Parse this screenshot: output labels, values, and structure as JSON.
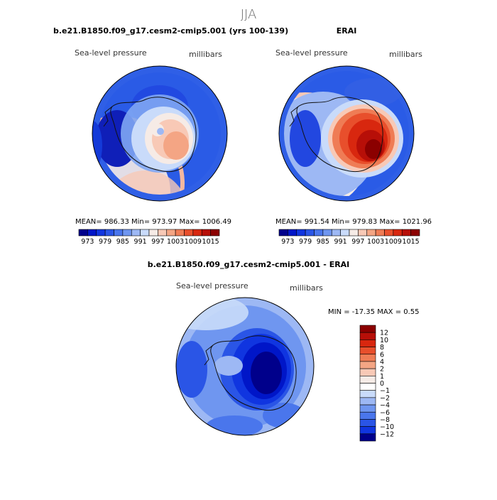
{
  "chart_data": {
    "type": "polar-contour-map",
    "figure_title": "JJA",
    "panels": [
      {
        "id": "model",
        "title": "b.e21.B1850.f09_g17.cesm2-cmip5.001 (yrs 100-139)",
        "left_label": "Sea-level pressure",
        "right_label": "millibars",
        "stats_text": "MEAN= 986.33   Min= 973.97   Max= 1006.49",
        "stats": {
          "mean": 986.33,
          "min": 973.97,
          "max": 1006.49
        },
        "colorbar_labels": [
          "973",
          "979",
          "985",
          "991",
          "997",
          "1003",
          "1009",
          "1015"
        ]
      },
      {
        "id": "obs",
        "title": "ERAI",
        "left_label": "Sea-level pressure",
        "right_label": "millibars",
        "stats_text": "MEAN= 991.54   Min= 979.83   Max= 1021.96",
        "stats": {
          "mean": 991.54,
          "min": 979.83,
          "max": 1021.96
        },
        "colorbar_labels": [
          "973",
          "979",
          "985",
          "991",
          "997",
          "1003",
          "1009",
          "1015"
        ]
      },
      {
        "id": "diff",
        "title": "b.e21.B1850.f09_g17.cesm2-cmip5.001 - ERAI",
        "left_label": "Sea-level pressure",
        "right_label": "millibars",
        "stats_text": "MIN = -17.35  MAX =    0.55",
        "stats": {
          "min": -17.35,
          "max": 0.55
        },
        "colorbar_labels": [
          "12",
          "10",
          "8",
          "6",
          "4",
          "2",
          "1",
          "0",
          "−1",
          "−2",
          "−4",
          "−6",
          "−8",
          "−10",
          "−12"
        ]
      }
    ],
    "colorbar_levels_abs": [
      973,
      976,
      979,
      982,
      985,
      988,
      991,
      994,
      997,
      1000,
      1003,
      1006,
      1009,
      1012,
      1015
    ],
    "colorbar_levels_diff": [
      12,
      10,
      8,
      6,
      4,
      2,
      1,
      0,
      -1,
      -2,
      -4,
      -6,
      -8,
      -10,
      -12
    ]
  },
  "colors": {
    "palette": [
      "#00008b",
      "#0016c8",
      "#1035e0",
      "#2a55e6",
      "#4a76ec",
      "#6f96f0",
      "#9db8f4",
      "#c9dbfa",
      "#f6ebe6",
      "#f8c9b6",
      "#f4a584",
      "#ef7c55",
      "#e84f2c",
      "#d8270f",
      "#b70f08",
      "#8b0000"
    ]
  }
}
